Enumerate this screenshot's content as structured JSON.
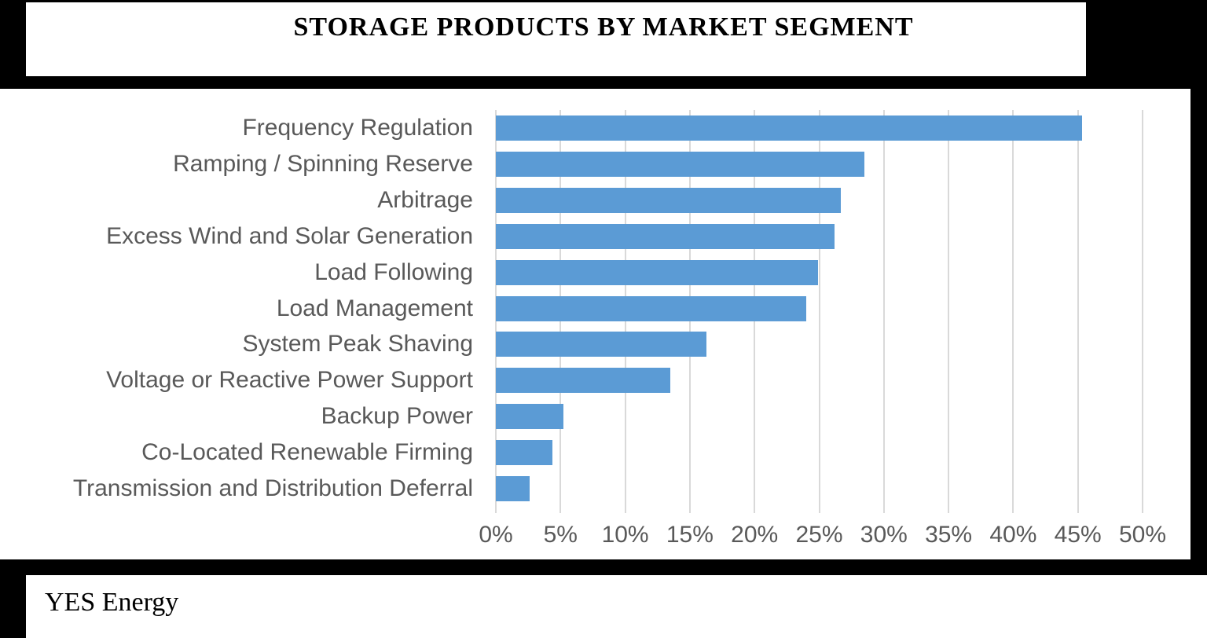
{
  "title": "STORAGE PRODUCTS BY MARKET SEGMENT",
  "footer": {
    "brand": "YES Energy"
  },
  "colors": {
    "bar": "#5B9BD5",
    "gridline": "#D9D9D9",
    "label": "#595959",
    "frame": "#000000",
    "background": "#FFFFFF"
  },
  "chart_data": {
    "type": "bar",
    "orientation": "horizontal",
    "title": "STORAGE PRODUCTS BY MARKET SEGMENT",
    "categories": [
      "Frequency Regulation",
      "Ramping / Spinning Reserve",
      "Arbitrage",
      "Excess Wind and Solar Generation",
      "Load Following",
      "Load Management",
      "System Peak Shaving",
      "Voltage or Reactive Power Support",
      "Backup Power",
      "Co-Located Renewable Firming",
      "Transmission and Distribution Deferral"
    ],
    "values": [
      45.3,
      28.5,
      26.7,
      26.2,
      24.9,
      24,
      16.3,
      13.5,
      5.2,
      4.4,
      2.6
    ],
    "unit": "%",
    "xlabel": "",
    "ylabel": "",
    "x_ticks": [
      "0%",
      "5%",
      "10%",
      "15%",
      "20%",
      "25%",
      "30%",
      "35%",
      "40%",
      "45%",
      "50%"
    ],
    "xlim": [
      0,
      50
    ],
    "grid": true,
    "legend": false
  }
}
